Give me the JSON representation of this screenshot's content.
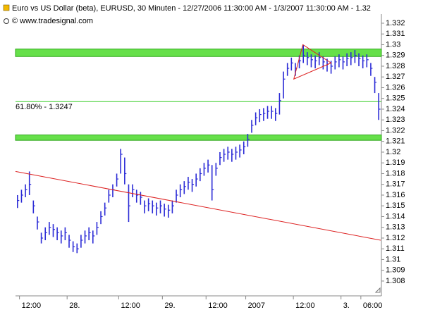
{
  "chart_data": {
    "type": "ohlc",
    "title": "Euro vs US Dollar (beta), EURUSD, 30 Minuten - 12/27/2006 11:30:00 AM - 1/3/2007 11:30:00 AM - 1.32",
    "subtitle": "© www.tradesignal.com",
    "color": "#2b2bd6",
    "high": [
      1.316,
      1.3165,
      1.317,
      1.3182,
      1.3155,
      1.314,
      1.3125,
      1.313,
      1.3135,
      1.3133,
      1.313,
      1.3127,
      1.313,
      1.3123,
      1.3117,
      1.3115,
      1.3123,
      1.3127,
      1.313,
      1.3127,
      1.3135,
      1.3145,
      1.3153,
      1.3165,
      1.317,
      1.318,
      1.3203,
      1.3195,
      1.317,
      1.317,
      1.3165,
      1.3163,
      1.3155,
      1.3157,
      1.3155,
      1.3153,
      1.3155,
      1.3152,
      1.3151,
      1.3155,
      1.3165,
      1.317,
      1.3173,
      1.3177,
      1.3175,
      1.318,
      1.3185,
      1.319,
      1.3193,
      1.3188,
      1.319,
      1.32,
      1.3203,
      1.3205,
      1.3203,
      1.3205,
      1.3207,
      1.321,
      1.3217,
      1.323,
      1.3237,
      1.324,
      1.3241,
      1.3243,
      1.3243,
      1.3241,
      1.3255,
      1.3275,
      1.3283,
      1.3288,
      1.3283,
      1.329,
      1.33,
      1.3293,
      1.3291,
      1.329,
      1.3293,
      1.3289,
      1.3287,
      1.3285,
      1.3289,
      1.3291,
      1.3289,
      1.3292,
      1.3293,
      1.3295,
      1.3292,
      1.329,
      1.3291,
      1.3283,
      1.327,
      1.3255
    ],
    "low": [
      1.3148,
      1.3153,
      1.3158,
      1.316,
      1.3143,
      1.3128,
      1.3115,
      1.3118,
      1.3123,
      1.3121,
      1.3118,
      1.3115,
      1.3118,
      1.3111,
      1.3107,
      1.3106,
      1.3111,
      1.3115,
      1.3118,
      1.3115,
      1.3123,
      1.3133,
      1.3141,
      1.3153,
      1.3158,
      1.3168,
      1.318,
      1.317,
      1.3135,
      1.3158,
      1.3153,
      1.3151,
      1.3143,
      1.3145,
      1.3143,
      1.3141,
      1.3143,
      1.314,
      1.3139,
      1.3143,
      1.3153,
      1.3158,
      1.3161,
      1.3165,
      1.3163,
      1.3168,
      1.3173,
      1.3178,
      1.3181,
      1.3155,
      1.3178,
      1.3188,
      1.3191,
      1.3193,
      1.3191,
      1.3193,
      1.3195,
      1.3198,
      1.3205,
      1.3218,
      1.3225,
      1.3228,
      1.3229,
      1.3231,
      1.3231,
      1.3229,
      1.3235,
      1.325,
      1.3271,
      1.3276,
      1.3271,
      1.3278,
      1.3283,
      1.3281,
      1.3279,
      1.3278,
      1.3281,
      1.3277,
      1.3275,
      1.3273,
      1.3277,
      1.3279,
      1.3277,
      1.328,
      1.3281,
      1.3283,
      1.328,
      1.3278,
      1.3279,
      1.3271,
      1.3255,
      1.323
    ],
    "close": [
      1.3155,
      1.316,
      1.3165,
      1.317,
      1.315,
      1.3135,
      1.312,
      1.3125,
      1.313,
      1.3128,
      1.3125,
      1.3122,
      1.3125,
      1.3118,
      1.3112,
      1.311,
      1.3118,
      1.3122,
      1.3125,
      1.3122,
      1.313,
      1.314,
      1.3148,
      1.316,
      1.3165,
      1.3175,
      1.3198,
      1.318,
      1.315,
      1.3165,
      1.316,
      1.3158,
      1.315,
      1.3152,
      1.315,
      1.3148,
      1.315,
      1.3147,
      1.3146,
      1.315,
      1.316,
      1.3165,
      1.3168,
      1.3172,
      1.317,
      1.3175,
      1.318,
      1.3185,
      1.3188,
      1.3165,
      1.3185,
      1.3195,
      1.3198,
      1.32,
      1.3198,
      1.32,
      1.3202,
      1.3205,
      1.3212,
      1.3225,
      1.3232,
      1.3235,
      1.3236,
      1.3238,
      1.3238,
      1.3236,
      1.3248,
      1.3268,
      1.3278,
      1.3283,
      1.3278,
      1.3285,
      1.329,
      1.3288,
      1.3286,
      1.3285,
      1.3288,
      1.3284,
      1.3282,
      1.328,
      1.3284,
      1.3286,
      1.3284,
      1.3287,
      1.3288,
      1.329,
      1.3287,
      1.3285,
      1.3286,
      1.3278,
      1.3265,
      1.324
    ],
    "ylim": [
      1.30662,
      1.33285
    ],
    "yticks": [
      1.308,
      1.309,
      1.31,
      1.311,
      1.312,
      1.313,
      1.314,
      1.315,
      1.316,
      1.317,
      1.318,
      1.319,
      1.32,
      1.321,
      1.322,
      1.323,
      1.324,
      1.325,
      1.326,
      1.327,
      1.328,
      1.329,
      1.33,
      1.331,
      1.332
    ],
    "xlim": [
      0,
      92
    ],
    "xticks": [
      {
        "value": 1,
        "label": "12:00"
      },
      {
        "value": 13,
        "label": "28."
      },
      {
        "value": 26,
        "label": "12:00"
      },
      {
        "value": 37,
        "label": "29."
      },
      {
        "value": 48,
        "label": "12:00"
      },
      {
        "value": 58,
        "label": "2007"
      },
      {
        "value": 70,
        "label": "12:00"
      },
      {
        "value": 82,
        "label": "3."
      },
      {
        "value": 87,
        "label": "06:00"
      }
    ],
    "zones": [
      {
        "from": 1.3289,
        "to": 1.3296,
        "color": "#66e04a"
      },
      {
        "from": 1.3211,
        "to": 1.3216,
        "color": "#66e04a"
      }
    ],
    "levels": [
      {
        "value": 1.3247,
        "label": "61.80% - 1.3247",
        "color": "#33cc22"
      }
    ],
    "trendlines": [
      {
        "x": [
          0,
          92
        ],
        "y": [
          1.3182,
          1.3118
        ],
        "color": "#dd2222"
      }
    ],
    "triangle": {
      "x": [
        72.4,
        79.5,
        70.1
      ],
      "y": [
        1.33,
        1.3283,
        1.3268
      ],
      "color": "#dd2222"
    }
  }
}
